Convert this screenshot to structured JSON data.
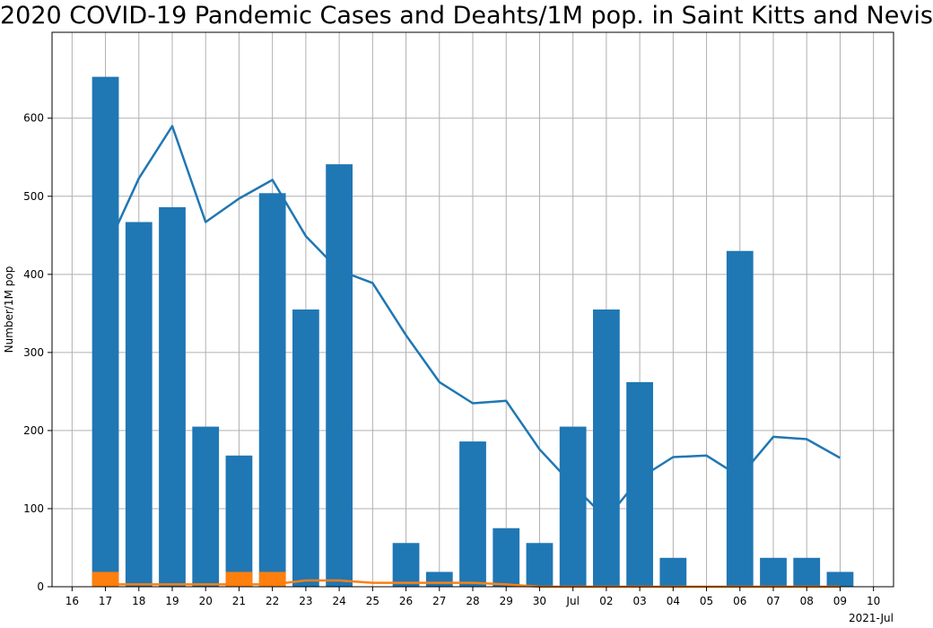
{
  "chart_data": {
    "type": "bar",
    "title": "2020 COVID-19 Pandemic Cases and Deahts/1M pop. in Saint Kitts and Nevis",
    "xlabel": "",
    "ylabel": "Number/1M pop",
    "x_tick_labels": [
      "16",
      "17",
      "18",
      "19",
      "20",
      "21",
      "22",
      "23",
      "24",
      "25",
      "26",
      "27",
      "28",
      "29",
      "30",
      "Jul",
      "02",
      "03",
      "04",
      "05",
      "06",
      "07",
      "08",
      "09",
      "10"
    ],
    "x_axis_sublabel": "2021-Jul",
    "y_ticks": [
      0,
      100,
      200,
      300,
      400,
      500,
      600
    ],
    "ylim": [
      0,
      710
    ],
    "grid": true,
    "categories": [
      "17",
      "18",
      "19",
      "20",
      "21",
      "22",
      "23",
      "24",
      "25",
      "26",
      "27",
      "28",
      "29",
      "30",
      "Jul",
      "02",
      "03",
      "04",
      "05",
      "06",
      "07",
      "08",
      "09"
    ],
    "series": [
      {
        "kind": "bar",
        "color": "#1f77b4",
        "values": [
          653,
          467,
          486,
          205,
          168,
          504,
          355,
          541,
          0,
          56,
          19,
          186,
          75,
          56,
          205,
          355,
          262,
          37,
          0,
          430,
          37,
          37,
          19
        ]
      },
      {
        "kind": "bar",
        "color": "#ff7f0e",
        "values": [
          19,
          0,
          0,
          0,
          19,
          19,
          0,
          0,
          0,
          0,
          0,
          0,
          0,
          0,
          0,
          0,
          0,
          0,
          0,
          0,
          0,
          0,
          0
        ]
      },
      {
        "kind": "line",
        "color": "#1f77b4",
        "values": [
          430,
          523,
          590,
          467,
          497,
          521,
          449,
          405,
          389,
          322,
          262,
          235,
          238,
          176,
          130,
          87,
          139,
          166,
          168,
          141,
          192,
          189,
          165
        ]
      },
      {
        "kind": "line",
        "color": "#ff7f0e",
        "values": [
          3,
          3,
          3,
          3,
          3,
          3,
          8,
          8,
          5,
          5,
          5,
          5,
          3,
          0,
          0,
          0,
          0,
          0,
          0,
          0,
          0,
          0,
          0
        ]
      }
    ]
  }
}
